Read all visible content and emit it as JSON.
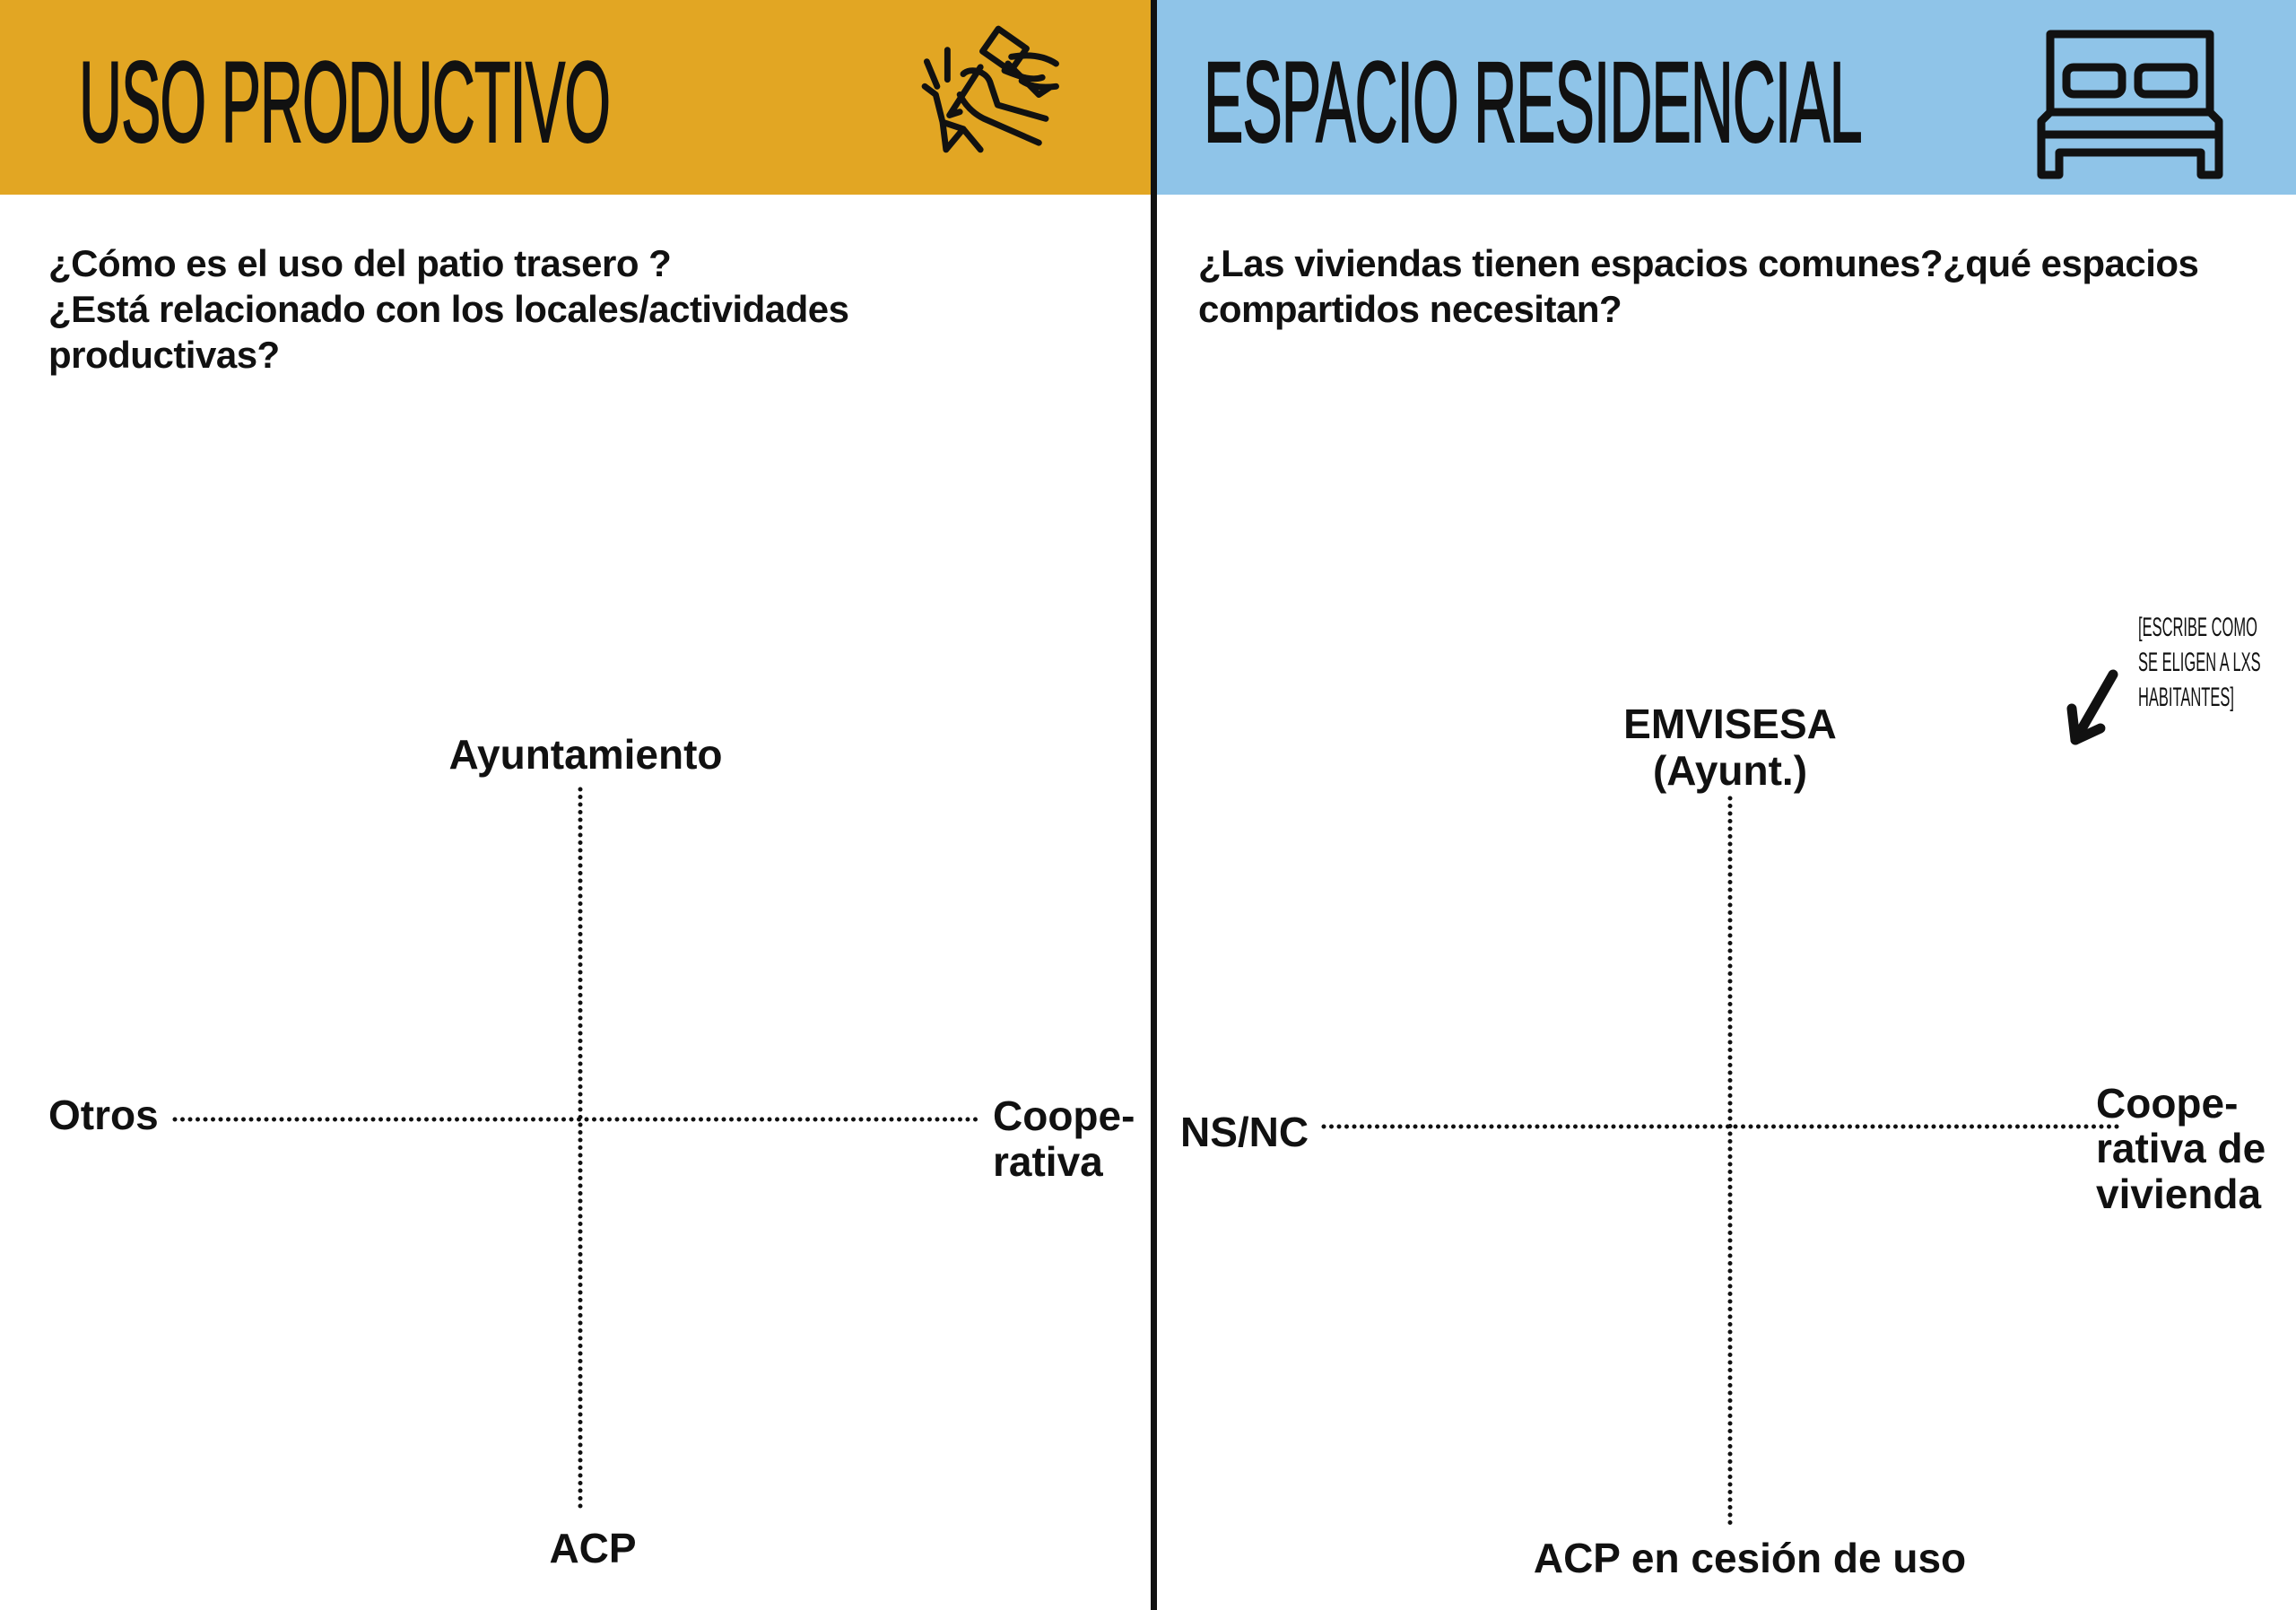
{
  "colors": {
    "left_header": "#e2a623",
    "right_header": "#8fc4e8",
    "divider": "#111111"
  },
  "left_panel": {
    "title": "USO PRODUCTIVO",
    "icon": "hands-hammer-chisel-icon",
    "question": [
      "¿Cómo es el uso del patio trasero ?",
      "¿Está relacionado con los locales/actividades",
      "productivas?"
    ],
    "axes": {
      "top": "Ayuntamiento",
      "bottom": "ACP",
      "left": "Otros",
      "right": [
        "Coope-",
        "rativa"
      ]
    }
  },
  "right_panel": {
    "title": "ESPACIO RESIDENCIAL",
    "icon": "bed-icon",
    "question": [
      "¿Las viviendas tienen espacios comunes?¿qué espacios",
      "compartidos necesitan?"
    ],
    "axes": {
      "top": [
        "EMVISESA",
        "(Ayunt.)"
      ],
      "bottom": "ACP en cesión de uso",
      "left": "NS/NC",
      "right": [
        "Coope-",
        "rativa de",
        "vivienda"
      ]
    },
    "note": [
      "[ESCRIBE COMO",
      "SE ELIGEN A LXS",
      "HABITANTES]"
    ],
    "note_icon": "arrow-down-left-icon"
  }
}
